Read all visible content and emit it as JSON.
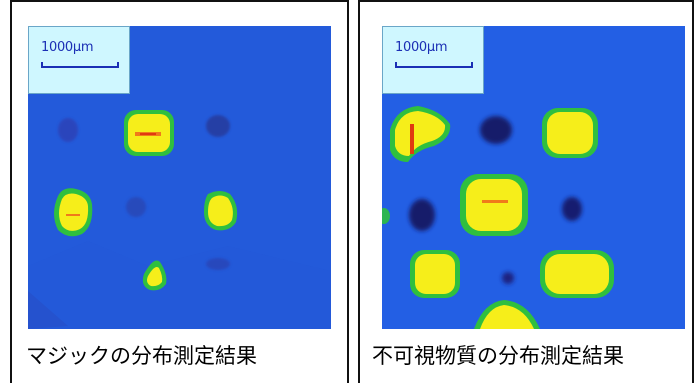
{
  "panels": [
    {
      "scale_label": "1000μm",
      "caption": "マジックの分布測定結果"
    },
    {
      "scale_label": "1000μm",
      "caption": "不可視物質の分布測定結果"
    }
  ],
  "colors": {
    "background": "#1f55d8",
    "high": "#f6ee1a",
    "high_edge": "#2fbf3f",
    "low": "#141a6a",
    "peak": "#e03a10"
  }
}
